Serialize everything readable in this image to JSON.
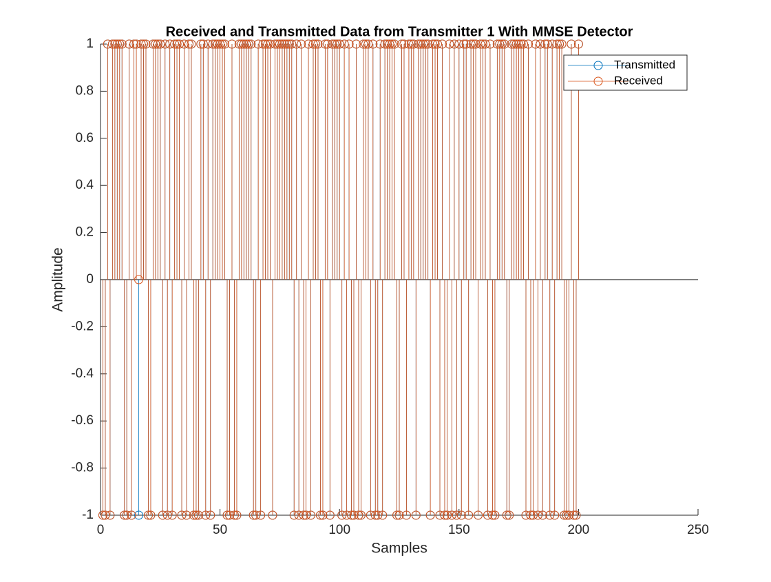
{
  "chart_data": {
    "type": "stem",
    "title": "Received and Transmitted Data from Transmitter 1 With MMSE Detector",
    "x_label": "Samples",
    "y_label": "Amplitude",
    "xlim": [
      0,
      250
    ],
    "xticks": [
      0,
      50,
      100,
      150,
      200,
      250
    ],
    "ylim": [
      -1,
      1
    ],
    "yticks": [
      -1,
      -0.8,
      -0.6,
      -0.4,
      -0.2,
      0,
      0.2,
      0.4,
      0.6,
      0.8,
      1
    ],
    "legend": "northeast",
    "baseline": 0,
    "x": [
      1,
      2,
      3,
      4,
      5,
      6,
      7,
      8,
      9,
      10,
      11,
      12,
      13,
      14,
      15,
      16,
      17,
      18,
      19,
      20,
      21,
      22,
      23,
      24,
      25,
      26,
      27,
      28,
      29,
      30,
      31,
      32,
      33,
      34,
      35,
      36,
      37,
      38,
      39,
      40,
      41,
      42,
      43,
      44,
      45,
      46,
      47,
      48,
      49,
      50,
      51,
      52,
      53,
      54,
      55,
      56,
      57,
      58,
      59,
      60,
      61,
      62,
      63,
      64,
      65,
      66,
      67,
      68,
      69,
      70,
      71,
      72,
      73,
      74,
      75,
      76,
      77,
      78,
      79,
      80,
      81,
      82,
      83,
      84,
      85,
      86,
      87,
      88,
      89,
      90,
      91,
      92,
      93,
      94,
      95,
      96,
      97,
      98,
      99,
      100,
      101,
      102,
      103,
      104,
      105,
      106,
      107,
      108,
      109,
      110,
      111,
      112,
      113,
      114,
      115,
      116,
      117,
      118,
      119,
      120,
      121,
      122,
      123,
      124,
      125,
      126,
      127,
      128,
      129,
      130,
      131,
      132,
      133,
      134,
      135,
      136,
      137,
      138,
      139,
      140,
      141,
      142,
      143,
      144,
      145,
      146,
      147,
      148,
      149,
      150,
      151,
      152,
      153,
      154,
      155,
      156,
      157,
      158,
      159,
      160,
      161,
      162,
      163,
      164,
      165,
      166,
      167,
      168,
      169,
      170,
      171,
      172,
      173,
      174,
      175,
      176,
      177,
      178,
      179,
      180,
      181,
      182,
      183,
      184,
      185,
      186,
      187,
      188,
      189,
      190,
      191,
      192,
      193,
      194,
      195,
      196,
      197,
      198,
      199,
      200
    ],
    "series": [
      {
        "name": "Transmitted",
        "color": "#0072BD",
        "values": [
          -1,
          -1,
          1,
          -1,
          1,
          1,
          1,
          1,
          1,
          -1,
          -1,
          1,
          -1,
          1,
          1,
          -1,
          1,
          1,
          1,
          -1,
          -1,
          1,
          1,
          1,
          1,
          -1,
          1,
          -1,
          1,
          -1,
          1,
          1,
          1,
          -1,
          1,
          -1,
          1,
          1,
          -1,
          -1,
          -1,
          1,
          1,
          -1,
          1,
          -1,
          1,
          1,
          1,
          1,
          1,
          1,
          -1,
          -1,
          1,
          -1,
          -1,
          1,
          1,
          1,
          1,
          1,
          1,
          -1,
          -1,
          1,
          -1,
          1,
          1,
          1,
          1,
          -1,
          1,
          1,
          1,
          1,
          1,
          1,
          1,
          1,
          -1,
          1,
          -1,
          1,
          -1,
          -1,
          1,
          -1,
          1,
          1,
          1,
          -1,
          -1,
          1,
          1,
          -1,
          1,
          1,
          1,
          1,
          -1,
          1,
          -1,
          1,
          -1,
          -1,
          1,
          -1,
          -1,
          1,
          1,
          1,
          -1,
          1,
          -1,
          -1,
          1,
          -1,
          1,
          1,
          1,
          1,
          1,
          -1,
          -1,
          1,
          1,
          -1,
          1,
          1,
          1,
          -1,
          1,
          1,
          1,
          1,
          1,
          -1,
          1,
          1,
          1,
          -1,
          1,
          -1,
          -1,
          1,
          -1,
          1,
          -1,
          1,
          -1,
          1,
          1,
          -1,
          1,
          1,
          1,
          -1,
          1,
          1,
          1,
          -1,
          1,
          -1,
          -1,
          1,
          1,
          1,
          1,
          -1,
          -1,
          1,
          1,
          1,
          1,
          1,
          1,
          -1,
          1,
          -1,
          -1,
          1,
          -1,
          1,
          -1,
          1,
          1,
          -1,
          1,
          -1,
          1,
          1,
          1,
          -1,
          -1,
          -1,
          1,
          -1,
          -1,
          1
        ]
      },
      {
        "name": "Received",
        "color": "#D95319",
        "values": [
          -1,
          -1,
          1,
          -1,
          1,
          1,
          1,
          1,
          1,
          -1,
          -1,
          1,
          -1,
          1,
          1,
          0,
          1,
          1,
          1,
          -1,
          -1,
          1,
          1,
          1,
          1,
          -1,
          1,
          -1,
          1,
          -1,
          1,
          1,
          1,
          -1,
          1,
          -1,
          1,
          1,
          -1,
          -1,
          -1,
          1,
          1,
          -1,
          1,
          -1,
          1,
          1,
          1,
          1,
          1,
          1,
          -1,
          -1,
          1,
          -1,
          -1,
          1,
          1,
          1,
          1,
          1,
          1,
          -1,
          -1,
          1,
          -1,
          1,
          1,
          1,
          1,
          -1,
          1,
          1,
          1,
          1,
          1,
          1,
          1,
          1,
          -1,
          1,
          -1,
          1,
          -1,
          -1,
          1,
          -1,
          1,
          1,
          1,
          -1,
          -1,
          1,
          1,
          -1,
          1,
          1,
          1,
          1,
          -1,
          1,
          -1,
          1,
          -1,
          -1,
          1,
          -1,
          -1,
          1,
          1,
          1,
          -1,
          1,
          -1,
          -1,
          1,
          -1,
          1,
          1,
          1,
          1,
          1,
          -1,
          -1,
          1,
          1,
          -1,
          1,
          1,
          1,
          -1,
          1,
          1,
          1,
          1,
          1,
          -1,
          1,
          1,
          1,
          -1,
          1,
          -1,
          -1,
          1,
          -1,
          1,
          -1,
          1,
          -1,
          1,
          1,
          -1,
          1,
          1,
          1,
          -1,
          1,
          1,
          1,
          -1,
          1,
          -1,
          -1,
          1,
          1,
          1,
          1,
          -1,
          -1,
          1,
          1,
          1,
          1,
          1,
          1,
          -1,
          1,
          -1,
          -1,
          1,
          -1,
          1,
          -1,
          1,
          1,
          -1,
          1,
          -1,
          1,
          1,
          1,
          -1,
          -1,
          -1,
          1,
          -1,
          -1,
          1
        ]
      }
    ]
  }
}
